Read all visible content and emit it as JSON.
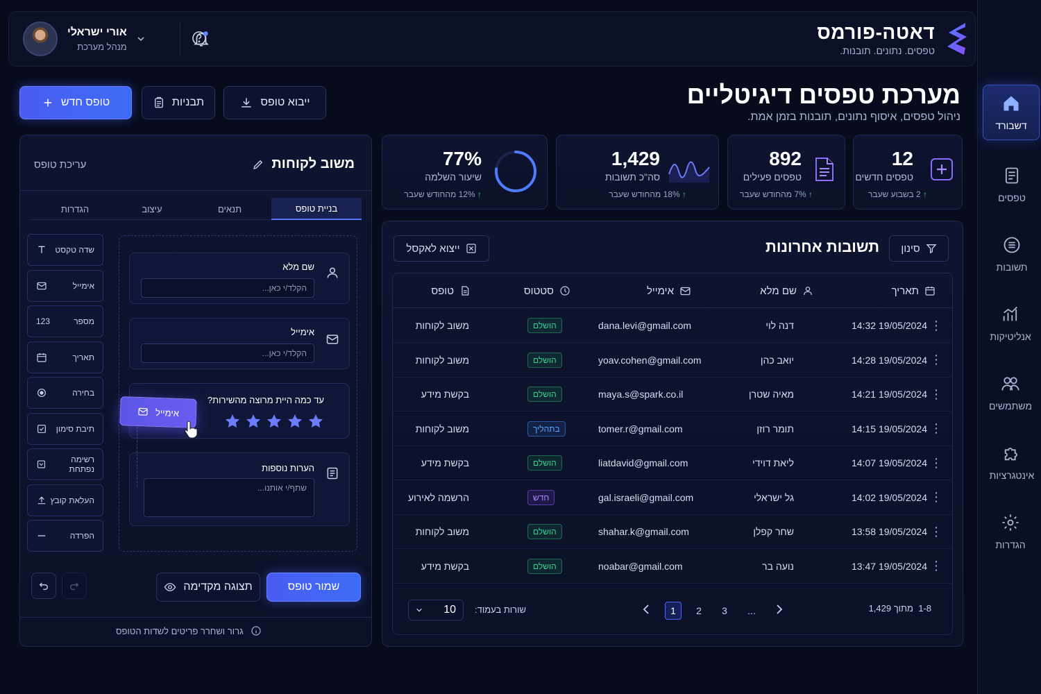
{
  "brand": {
    "title": "דאטה-פורמס",
    "subtitle": "טפסים. נתונים. תובנות."
  },
  "user": {
    "name": "אורי ישראלי",
    "role": "מנהל מערכת"
  },
  "page": {
    "title": "מערכת טפסים דיגיטליים",
    "subtitle": "ניהול טפסים, איסוף נתונים, תובנות בזמן אמת."
  },
  "actions": {
    "new_form": "טופס חדש",
    "templates": "תבניות",
    "export_form": "ייבוא טופס"
  },
  "sidebar": {
    "items": [
      {
        "label": "דשבורד",
        "icon": "home-icon",
        "active": true
      },
      {
        "label": "טפסים",
        "icon": "forms-icon"
      },
      {
        "label": "תשובות",
        "icon": "responses-icon"
      },
      {
        "label": "אנליטיקות",
        "icon": "analytics-icon"
      },
      {
        "label": "משתמשים",
        "icon": "users-icon"
      },
      {
        "label": "אינטגרציות",
        "icon": "puzzle-icon"
      },
      {
        "label": "הגדרות",
        "icon": "gear-icon"
      }
    ]
  },
  "stats": [
    {
      "value": "12",
      "label": "טפסים חדשים",
      "trend": "2 בשבוע שעבר"
    },
    {
      "value": "892",
      "label": "טפסים פעילים",
      "trend": "7% מהחודש שעבר"
    },
    {
      "value": "1,429",
      "label": "סה\"כ תשובות",
      "trend": "18% מהחודש שעבר"
    },
    {
      "value": "77%",
      "label": "שיעור השלמה",
      "trend": "12% מהחודש שעבר",
      "progress": 0.77
    }
  ],
  "responses": {
    "title": "תשובות אחרונות",
    "filter_label": "סינון",
    "export_label": "ייצוא לאקסל",
    "columns": {
      "date": "תאריך",
      "name": "שם מלא",
      "email": "אימייל",
      "status": "סטטוס",
      "form": "טופס"
    },
    "rows": [
      {
        "date": "19/05/2024 14:32",
        "name": "דנה לוי",
        "email": "dana.levi@gmail.com",
        "status": "הושלם",
        "status_type": "done",
        "form": "משוב לקוחות"
      },
      {
        "date": "19/05/2024 14:28",
        "name": "יואב כהן",
        "email": "yoav.cohen@gmail.com",
        "status": "הושלם",
        "status_type": "done",
        "form": "משוב לקוחות"
      },
      {
        "date": "19/05/2024 14:21",
        "name": "מאיה שטרן",
        "email": "maya.s@spark.co.il",
        "status": "הושלם",
        "status_type": "done",
        "form": "בקשת מידע"
      },
      {
        "date": "19/05/2024 14:15",
        "name": "תומר רוזן",
        "email": "tomer.r@gmail.com",
        "status": "בתהליך",
        "status_type": "prog",
        "form": "משוב לקוחות"
      },
      {
        "date": "19/05/2024 14:07",
        "name": "ליאת דוידי",
        "email": "liatdavid@gmail.com",
        "status": "הושלם",
        "status_type": "done",
        "form": "בקשת מידע"
      },
      {
        "date": "19/05/2024 14:02",
        "name": "גל ישראלי",
        "email": "gal.israeli@gmail.com",
        "status": "חדש",
        "status_type": "new",
        "form": "הרשמה לאירוע"
      },
      {
        "date": "19/05/2024 13:58",
        "name": "שחר קפלן",
        "email": "shahar.k@gmail.com",
        "status": "הושלם",
        "status_type": "done",
        "form": "משוב לקוחות"
      },
      {
        "date": "19/05/2024 13:47",
        "name": "נועה בר",
        "email": "noabar@gmail.com",
        "status": "הושלם",
        "status_type": "done",
        "form": "בקשת מידע"
      }
    ],
    "pagination": {
      "range": "1-8",
      "of_total": "מתוך 1,429",
      "pages": [
        "1",
        "2",
        "3",
        "..."
      ],
      "current": "1",
      "rows_per_page_label": "שורות בעמוד:",
      "rows_per_page": "10"
    }
  },
  "builder": {
    "form_name": "משוב לקוחות",
    "edit_label": "עריכת טופס",
    "tabs": [
      "בניית טופס",
      "תנאים",
      "עיצוב",
      "הגדרות"
    ],
    "palette": [
      {
        "label": "שדה טקסט",
        "icon": "text-icon"
      },
      {
        "label": "אימייל",
        "icon": "mail-icon"
      },
      {
        "label": "מספר",
        "icon": "number-icon",
        "glyph": "123"
      },
      {
        "label": "תאריך",
        "icon": "calendar-icon"
      },
      {
        "label": "בחירה",
        "icon": "radio-icon"
      },
      {
        "label": "תיבת סימון",
        "icon": "checkbox-icon"
      },
      {
        "label": "רשימה נפתחת",
        "icon": "dropdown-icon"
      },
      {
        "label": "העלאת קובץ",
        "icon": "upload-icon"
      },
      {
        "label": "הפרדה",
        "icon": "divider-icon"
      }
    ],
    "fields": {
      "full_name": {
        "label": "שם מלא",
        "placeholder": "הקלד/י כאן..."
      },
      "email": {
        "label": "אימייל",
        "placeholder": "הקלד/י כאן..."
      },
      "rating": {
        "label": "עד כמה היית מרוצה מהשירות?",
        "stars": 5
      },
      "notes": {
        "label": "הערות נוספות",
        "placeholder": "שתף/י אותנו..."
      }
    },
    "drag_chip": "אימייל",
    "preview_label": "תצוגה מקדימה",
    "save_label": "שמור טופס",
    "hint": "גרור ושחרר פריטים לשדות הטופס"
  }
}
